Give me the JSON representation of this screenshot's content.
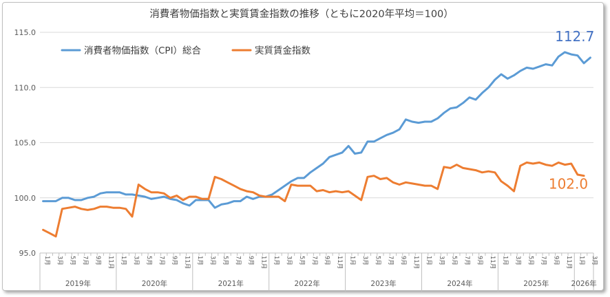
{
  "chart_data": {
    "type": "line",
    "title": "消費者物価指数と実質賃金指数の推移（ともに2020年平均＝100）",
    "xlabel": "",
    "ylabel": "",
    "ylim": [
      95,
      115
    ],
    "yticks": [
      "95.0",
      "100.0",
      "105.0",
      "110.0",
      "115.0"
    ],
    "grid": "horizontal",
    "legend_position": "top-left",
    "month_labels": [
      "1月",
      "3月",
      "5月",
      "7月",
      "9月",
      "11月"
    ],
    "year_labels": [
      "2019年",
      "2020年",
      "2021年",
      "2022年",
      "2023年",
      "2024年",
      "2025年",
      "2026年"
    ],
    "x_start": "2019-01",
    "series": [
      {
        "name": "消費者物価指数（CPI）総合",
        "color": "#5b9bd5",
        "end_label": "112.7",
        "values": [
          99.7,
          99.7,
          99.7,
          100.0,
          100.0,
          99.8,
          99.8,
          100.0,
          100.1,
          100.4,
          100.5,
          100.5,
          100.5,
          100.3,
          100.3,
          100.2,
          100.1,
          99.9,
          100.0,
          100.1,
          99.9,
          99.8,
          99.5,
          99.3,
          99.8,
          99.8,
          99.8,
          99.1,
          99.4,
          99.5,
          99.7,
          99.7,
          100.1,
          99.9,
          100.1,
          100.1,
          100.3,
          100.7,
          101.1,
          101.5,
          101.8,
          101.8,
          102.3,
          102.7,
          103.1,
          103.7,
          103.9,
          104.1,
          104.7,
          104.0,
          104.1,
          105.1,
          105.1,
          105.4,
          105.7,
          105.9,
          106.2,
          107.1,
          106.9,
          106.8,
          106.9,
          106.9,
          107.2,
          107.7,
          108.1,
          108.2,
          108.6,
          109.1,
          108.9,
          109.5,
          110.0,
          110.7,
          111.2,
          110.8,
          111.1,
          111.5,
          111.8,
          111.7,
          111.9,
          112.1,
          112.0,
          112.8,
          113.2,
          113.0,
          112.9,
          112.2,
          112.7
        ]
      },
      {
        "name": "実質賃金指数",
        "color": "#ed7d31",
        "end_label": "102.0",
        "values": [
          97.1,
          96.8,
          96.5,
          99.0,
          99.1,
          99.2,
          99.0,
          98.9,
          99.0,
          99.2,
          99.2,
          99.1,
          99.1,
          99.0,
          98.3,
          101.2,
          100.8,
          100.5,
          100.5,
          100.4,
          100.0,
          100.2,
          99.8,
          100.1,
          100.1,
          99.9,
          99.9,
          101.9,
          101.7,
          101.4,
          101.1,
          100.8,
          100.6,
          100.5,
          100.2,
          100.1,
          100.1,
          100.1,
          99.7,
          101.2,
          101.1,
          101.1,
          101.1,
          100.6,
          100.7,
          100.5,
          100.6,
          100.5,
          100.6,
          100.2,
          99.8,
          101.9,
          102.0,
          101.7,
          101.8,
          101.4,
          101.2,
          101.4,
          101.3,
          101.2,
          101.1,
          101.1,
          100.8,
          102.8,
          102.7,
          103.0,
          102.7,
          102.6,
          102.5,
          102.3,
          102.4,
          102.3,
          101.5,
          101.1,
          100.6,
          102.9,
          103.2,
          103.1,
          103.2,
          103.0,
          102.9,
          103.2,
          103.0,
          103.1,
          102.1,
          102.0
        ]
      }
    ]
  }
}
